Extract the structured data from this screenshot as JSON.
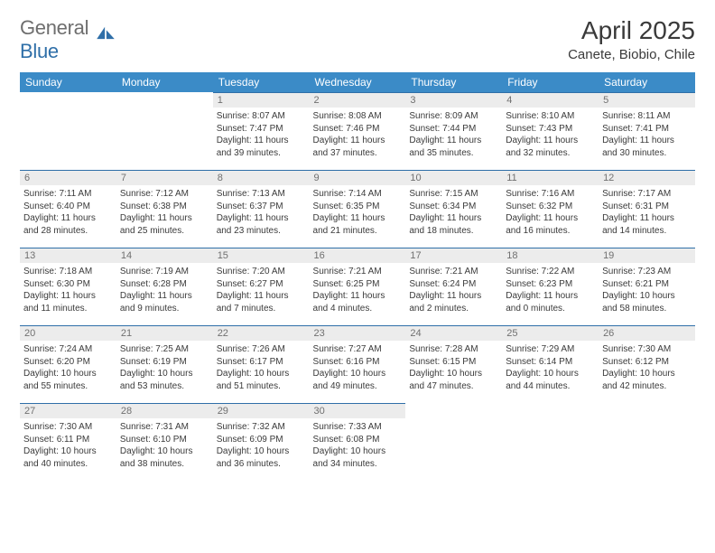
{
  "logo": {
    "gray": "General",
    "blue": "Blue"
  },
  "title": "April 2025",
  "subtitle": "Canete, Biobio, Chile",
  "colors": {
    "header_bg": "#3b8bc7",
    "divider": "#2f6fa8",
    "daynum_bg": "#ececec",
    "daynum_fg": "#707070",
    "text": "#3a3a3a",
    "bg": "#ffffff"
  },
  "weekday_labels": [
    "Sunday",
    "Monday",
    "Tuesday",
    "Wednesday",
    "Thursday",
    "Friday",
    "Saturday"
  ],
  "first_weekday": 2,
  "days": [
    {
      "n": 1,
      "sunrise": "8:07 AM",
      "sunset": "7:47 PM",
      "daylight": "11 hours and 39 minutes."
    },
    {
      "n": 2,
      "sunrise": "8:08 AM",
      "sunset": "7:46 PM",
      "daylight": "11 hours and 37 minutes."
    },
    {
      "n": 3,
      "sunrise": "8:09 AM",
      "sunset": "7:44 PM",
      "daylight": "11 hours and 35 minutes."
    },
    {
      "n": 4,
      "sunrise": "8:10 AM",
      "sunset": "7:43 PM",
      "daylight": "11 hours and 32 minutes."
    },
    {
      "n": 5,
      "sunrise": "8:11 AM",
      "sunset": "7:41 PM",
      "daylight": "11 hours and 30 minutes."
    },
    {
      "n": 6,
      "sunrise": "7:11 AM",
      "sunset": "6:40 PM",
      "daylight": "11 hours and 28 minutes."
    },
    {
      "n": 7,
      "sunrise": "7:12 AM",
      "sunset": "6:38 PM",
      "daylight": "11 hours and 25 minutes."
    },
    {
      "n": 8,
      "sunrise": "7:13 AM",
      "sunset": "6:37 PM",
      "daylight": "11 hours and 23 minutes."
    },
    {
      "n": 9,
      "sunrise": "7:14 AM",
      "sunset": "6:35 PM",
      "daylight": "11 hours and 21 minutes."
    },
    {
      "n": 10,
      "sunrise": "7:15 AM",
      "sunset": "6:34 PM",
      "daylight": "11 hours and 18 minutes."
    },
    {
      "n": 11,
      "sunrise": "7:16 AM",
      "sunset": "6:32 PM",
      "daylight": "11 hours and 16 minutes."
    },
    {
      "n": 12,
      "sunrise": "7:17 AM",
      "sunset": "6:31 PM",
      "daylight": "11 hours and 14 minutes."
    },
    {
      "n": 13,
      "sunrise": "7:18 AM",
      "sunset": "6:30 PM",
      "daylight": "11 hours and 11 minutes."
    },
    {
      "n": 14,
      "sunrise": "7:19 AM",
      "sunset": "6:28 PM",
      "daylight": "11 hours and 9 minutes."
    },
    {
      "n": 15,
      "sunrise": "7:20 AM",
      "sunset": "6:27 PM",
      "daylight": "11 hours and 7 minutes."
    },
    {
      "n": 16,
      "sunrise": "7:21 AM",
      "sunset": "6:25 PM",
      "daylight": "11 hours and 4 minutes."
    },
    {
      "n": 17,
      "sunrise": "7:21 AM",
      "sunset": "6:24 PM",
      "daylight": "11 hours and 2 minutes."
    },
    {
      "n": 18,
      "sunrise": "7:22 AM",
      "sunset": "6:23 PM",
      "daylight": "11 hours and 0 minutes."
    },
    {
      "n": 19,
      "sunrise": "7:23 AM",
      "sunset": "6:21 PM",
      "daylight": "10 hours and 58 minutes."
    },
    {
      "n": 20,
      "sunrise": "7:24 AM",
      "sunset": "6:20 PM",
      "daylight": "10 hours and 55 minutes."
    },
    {
      "n": 21,
      "sunrise": "7:25 AM",
      "sunset": "6:19 PM",
      "daylight": "10 hours and 53 minutes."
    },
    {
      "n": 22,
      "sunrise": "7:26 AM",
      "sunset": "6:17 PM",
      "daylight": "10 hours and 51 minutes."
    },
    {
      "n": 23,
      "sunrise": "7:27 AM",
      "sunset": "6:16 PM",
      "daylight": "10 hours and 49 minutes."
    },
    {
      "n": 24,
      "sunrise": "7:28 AM",
      "sunset": "6:15 PM",
      "daylight": "10 hours and 47 minutes."
    },
    {
      "n": 25,
      "sunrise": "7:29 AM",
      "sunset": "6:14 PM",
      "daylight": "10 hours and 44 minutes."
    },
    {
      "n": 26,
      "sunrise": "7:30 AM",
      "sunset": "6:12 PM",
      "daylight": "10 hours and 42 minutes."
    },
    {
      "n": 27,
      "sunrise": "7:30 AM",
      "sunset": "6:11 PM",
      "daylight": "10 hours and 40 minutes."
    },
    {
      "n": 28,
      "sunrise": "7:31 AM",
      "sunset": "6:10 PM",
      "daylight": "10 hours and 38 minutes."
    },
    {
      "n": 29,
      "sunrise": "7:32 AM",
      "sunset": "6:09 PM",
      "daylight": "10 hours and 36 minutes."
    },
    {
      "n": 30,
      "sunrise": "7:33 AM",
      "sunset": "6:08 PM",
      "daylight": "10 hours and 34 minutes."
    }
  ],
  "labels": {
    "sunrise": "Sunrise:",
    "sunset": "Sunset:",
    "daylight": "Daylight:"
  }
}
